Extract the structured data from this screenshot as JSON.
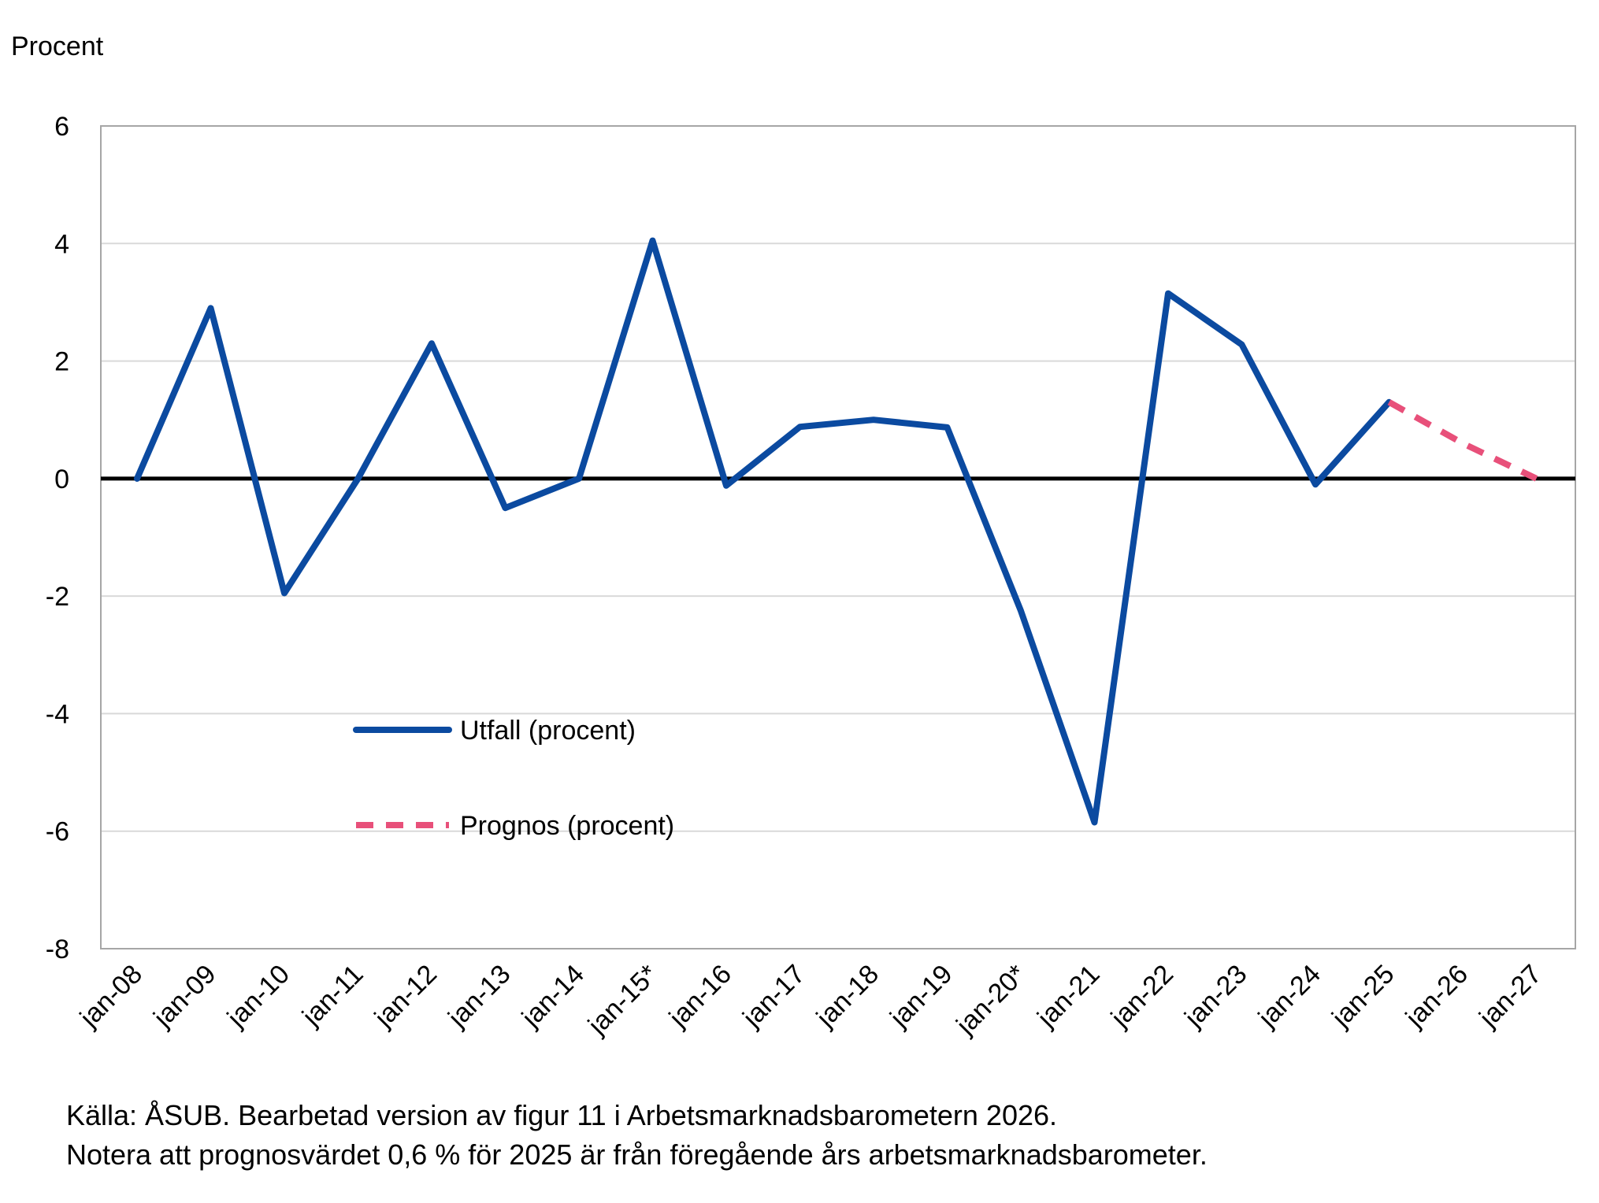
{
  "chart_data": {
    "type": "line",
    "title": "",
    "ylabel": "Procent",
    "xlabel": "",
    "ylim": [
      -8,
      6
    ],
    "yticks": [
      6,
      4,
      2,
      0,
      -2,
      -4,
      -6,
      -8
    ],
    "categories": [
      "jan-08",
      "jan-09",
      "jan-10",
      "jan-11",
      "jan-12",
      "jan-13",
      "jan-14",
      "jan-15*",
      "jan-16",
      "jan-17",
      "jan-18",
      "jan-19",
      "jan-20*",
      "jan-21",
      "jan-22",
      "jan-23",
      "jan-24",
      "jan-25",
      "jan-26",
      "jan-27"
    ],
    "grid": true,
    "legend_position": "lower-left",
    "series": [
      {
        "name": "Utfall (procent)",
        "style": "solid",
        "color": "#0b4aa0",
        "values": [
          0.0,
          2.9,
          -1.95,
          0.0,
          2.3,
          -0.5,
          0.0,
          4.05,
          -0.12,
          0.88,
          1.0,
          0.87,
          -2.25,
          -5.85,
          3.15,
          2.28,
          -0.1,
          1.3,
          null,
          null
        ]
      },
      {
        "name": "Prognos (procent)",
        "style": "dashed",
        "color": "#e8507a",
        "values": [
          null,
          null,
          null,
          null,
          null,
          null,
          null,
          null,
          null,
          null,
          null,
          null,
          null,
          null,
          null,
          null,
          null,
          1.3,
          0.6,
          0.0
        ]
      }
    ],
    "zero_line_color": "#000000",
    "grid_color": "#d9d9d9",
    "frame_color": "#a6a6a6"
  },
  "notes": {
    "source": "Källa: ÅSUB. Bearbetad version av figur 11 i Arbetsmarknadsbarometern 2026.",
    "note": "Notera att prognosvärdet 0,6 % för 2025 är från föregående års arbetsmarknadsbarometer."
  }
}
